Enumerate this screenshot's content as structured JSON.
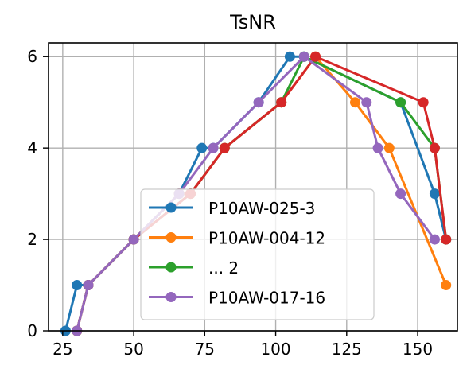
{
  "chart_data": {
    "type": "line",
    "title": "TsNR",
    "xlabel": "",
    "ylabel": "",
    "xlim": [
      20,
      164
    ],
    "ylim": [
      0,
      6.3
    ],
    "xticks": [
      25,
      50,
      75,
      100,
      125,
      150
    ],
    "yticks": [
      0,
      2,
      4,
      6
    ],
    "grid": true,
    "legend_position": "lower center",
    "legend_entries": [
      "P10AW-025-3",
      "P10AW-004-12",
      "... 2",
      "P10AW-017-16"
    ],
    "series": [
      {
        "name": "P10AW-025-3",
        "color": "#1f77b4",
        "x": [
          26,
          30,
          34,
          50,
          66,
          74,
          78,
          94,
          105,
          110,
          144,
          156,
          160
        ],
        "y": [
          0,
          1,
          1,
          2,
          3,
          4,
          4,
          5,
          6,
          6,
          5,
          3,
          2
        ]
      },
      {
        "name": "P10AW-004-12",
        "color": "#ff7f0e",
        "x": [
          30,
          34,
          50,
          66,
          70,
          82,
          102,
          114,
          128,
          140,
          160
        ],
        "y": [
          0,
          1,
          2,
          3,
          3,
          4,
          5,
          6,
          5,
          4,
          1
        ]
      },
      {
        "name": "... 2",
        "color": "#2ca02c",
        "x": [
          30,
          34,
          50,
          70,
          82,
          102,
          110,
          144,
          156,
          160
        ],
        "y": [
          0,
          1,
          2,
          3,
          4,
          5,
          6,
          5,
          4,
          2
        ]
      },
      {
        "name": "",
        "color": "#d62728",
        "x": [
          30,
          34,
          50,
          70,
          82,
          102,
          114,
          152,
          156,
          160
        ],
        "y": [
          0,
          1,
          2,
          3,
          4,
          5,
          6,
          5,
          4,
          2
        ]
      },
      {
        "name": "P10AW-017-16",
        "color": "#9467bd",
        "x": [
          30,
          34,
          50,
          66,
          78,
          94,
          110,
          132,
          136,
          144,
          156
        ],
        "y": [
          0,
          1,
          2,
          3,
          4,
          5,
          6,
          5,
          4,
          3,
          2
        ]
      }
    ]
  }
}
